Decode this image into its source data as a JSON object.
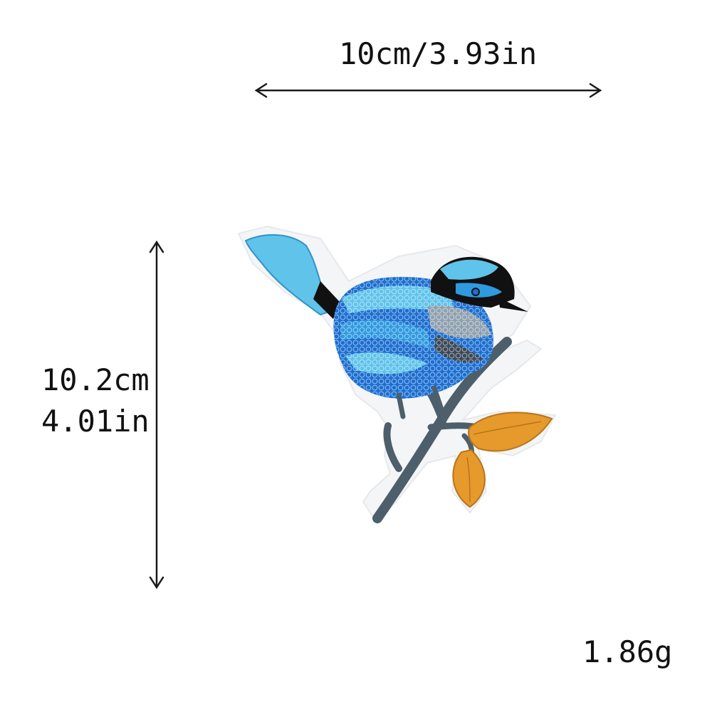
{
  "dimensions": {
    "width_label": "10cm/3.93in",
    "height_label_cm": "10.2cm",
    "height_label_in": "4.01in"
  },
  "weight_label": "1.86g",
  "colors": {
    "arrow": "#1a1a1a",
    "bird_dark_blue": "#1c6fd1",
    "bird_light_blue": "#5fc3ea",
    "bird_black": "#111111",
    "branch": "#4c5f6b",
    "leaf": "#e69a2b"
  }
}
